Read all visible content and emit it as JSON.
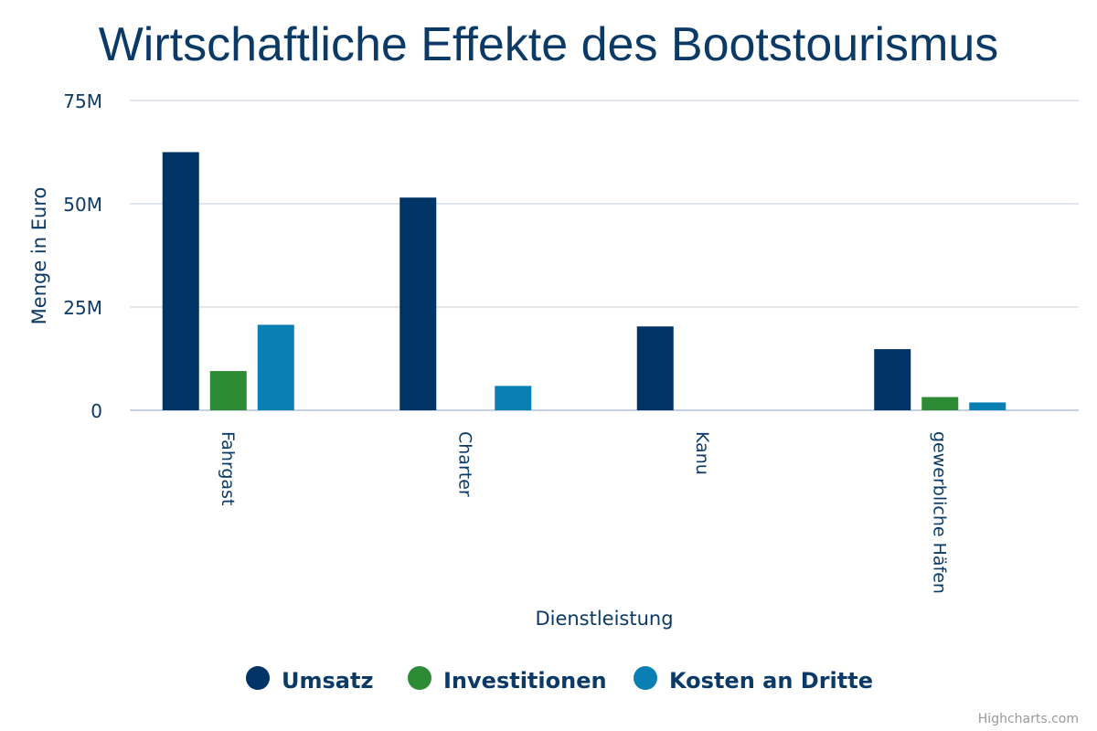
{
  "chart_data": {
    "type": "bar",
    "title": "Wirtschaftliche Effekte des Bootstourismus",
    "xlabel": "Dienstleistung",
    "ylabel": "Menge in Euro",
    "ylim": [
      0,
      75000000
    ],
    "yticks": [
      {
        "value": 0,
        "label": "0"
      },
      {
        "value": 25000000,
        "label": "25M"
      },
      {
        "value": 50000000,
        "label": "50M"
      },
      {
        "value": 75000000,
        "label": "75M"
      }
    ],
    "categories": [
      "Fahrgast",
      "Charter",
      "Kanu",
      "gewerbliche Häfen"
    ],
    "series": [
      {
        "name": "Umsatz",
        "color": "#003366",
        "values": [
          62500000,
          51500000,
          20300000,
          14800000
        ]
      },
      {
        "name": "Investitionen",
        "color": "#2e8b35",
        "values": [
          9500000,
          0,
          0,
          3200000
        ]
      },
      {
        "name": "Kosten an Dritte",
        "color": "#0a7fb4",
        "values": [
          20700000,
          5900000,
          0,
          1900000
        ]
      }
    ],
    "grid": true,
    "legend_position": "bottom-center",
    "credits": "Highcharts.com"
  }
}
